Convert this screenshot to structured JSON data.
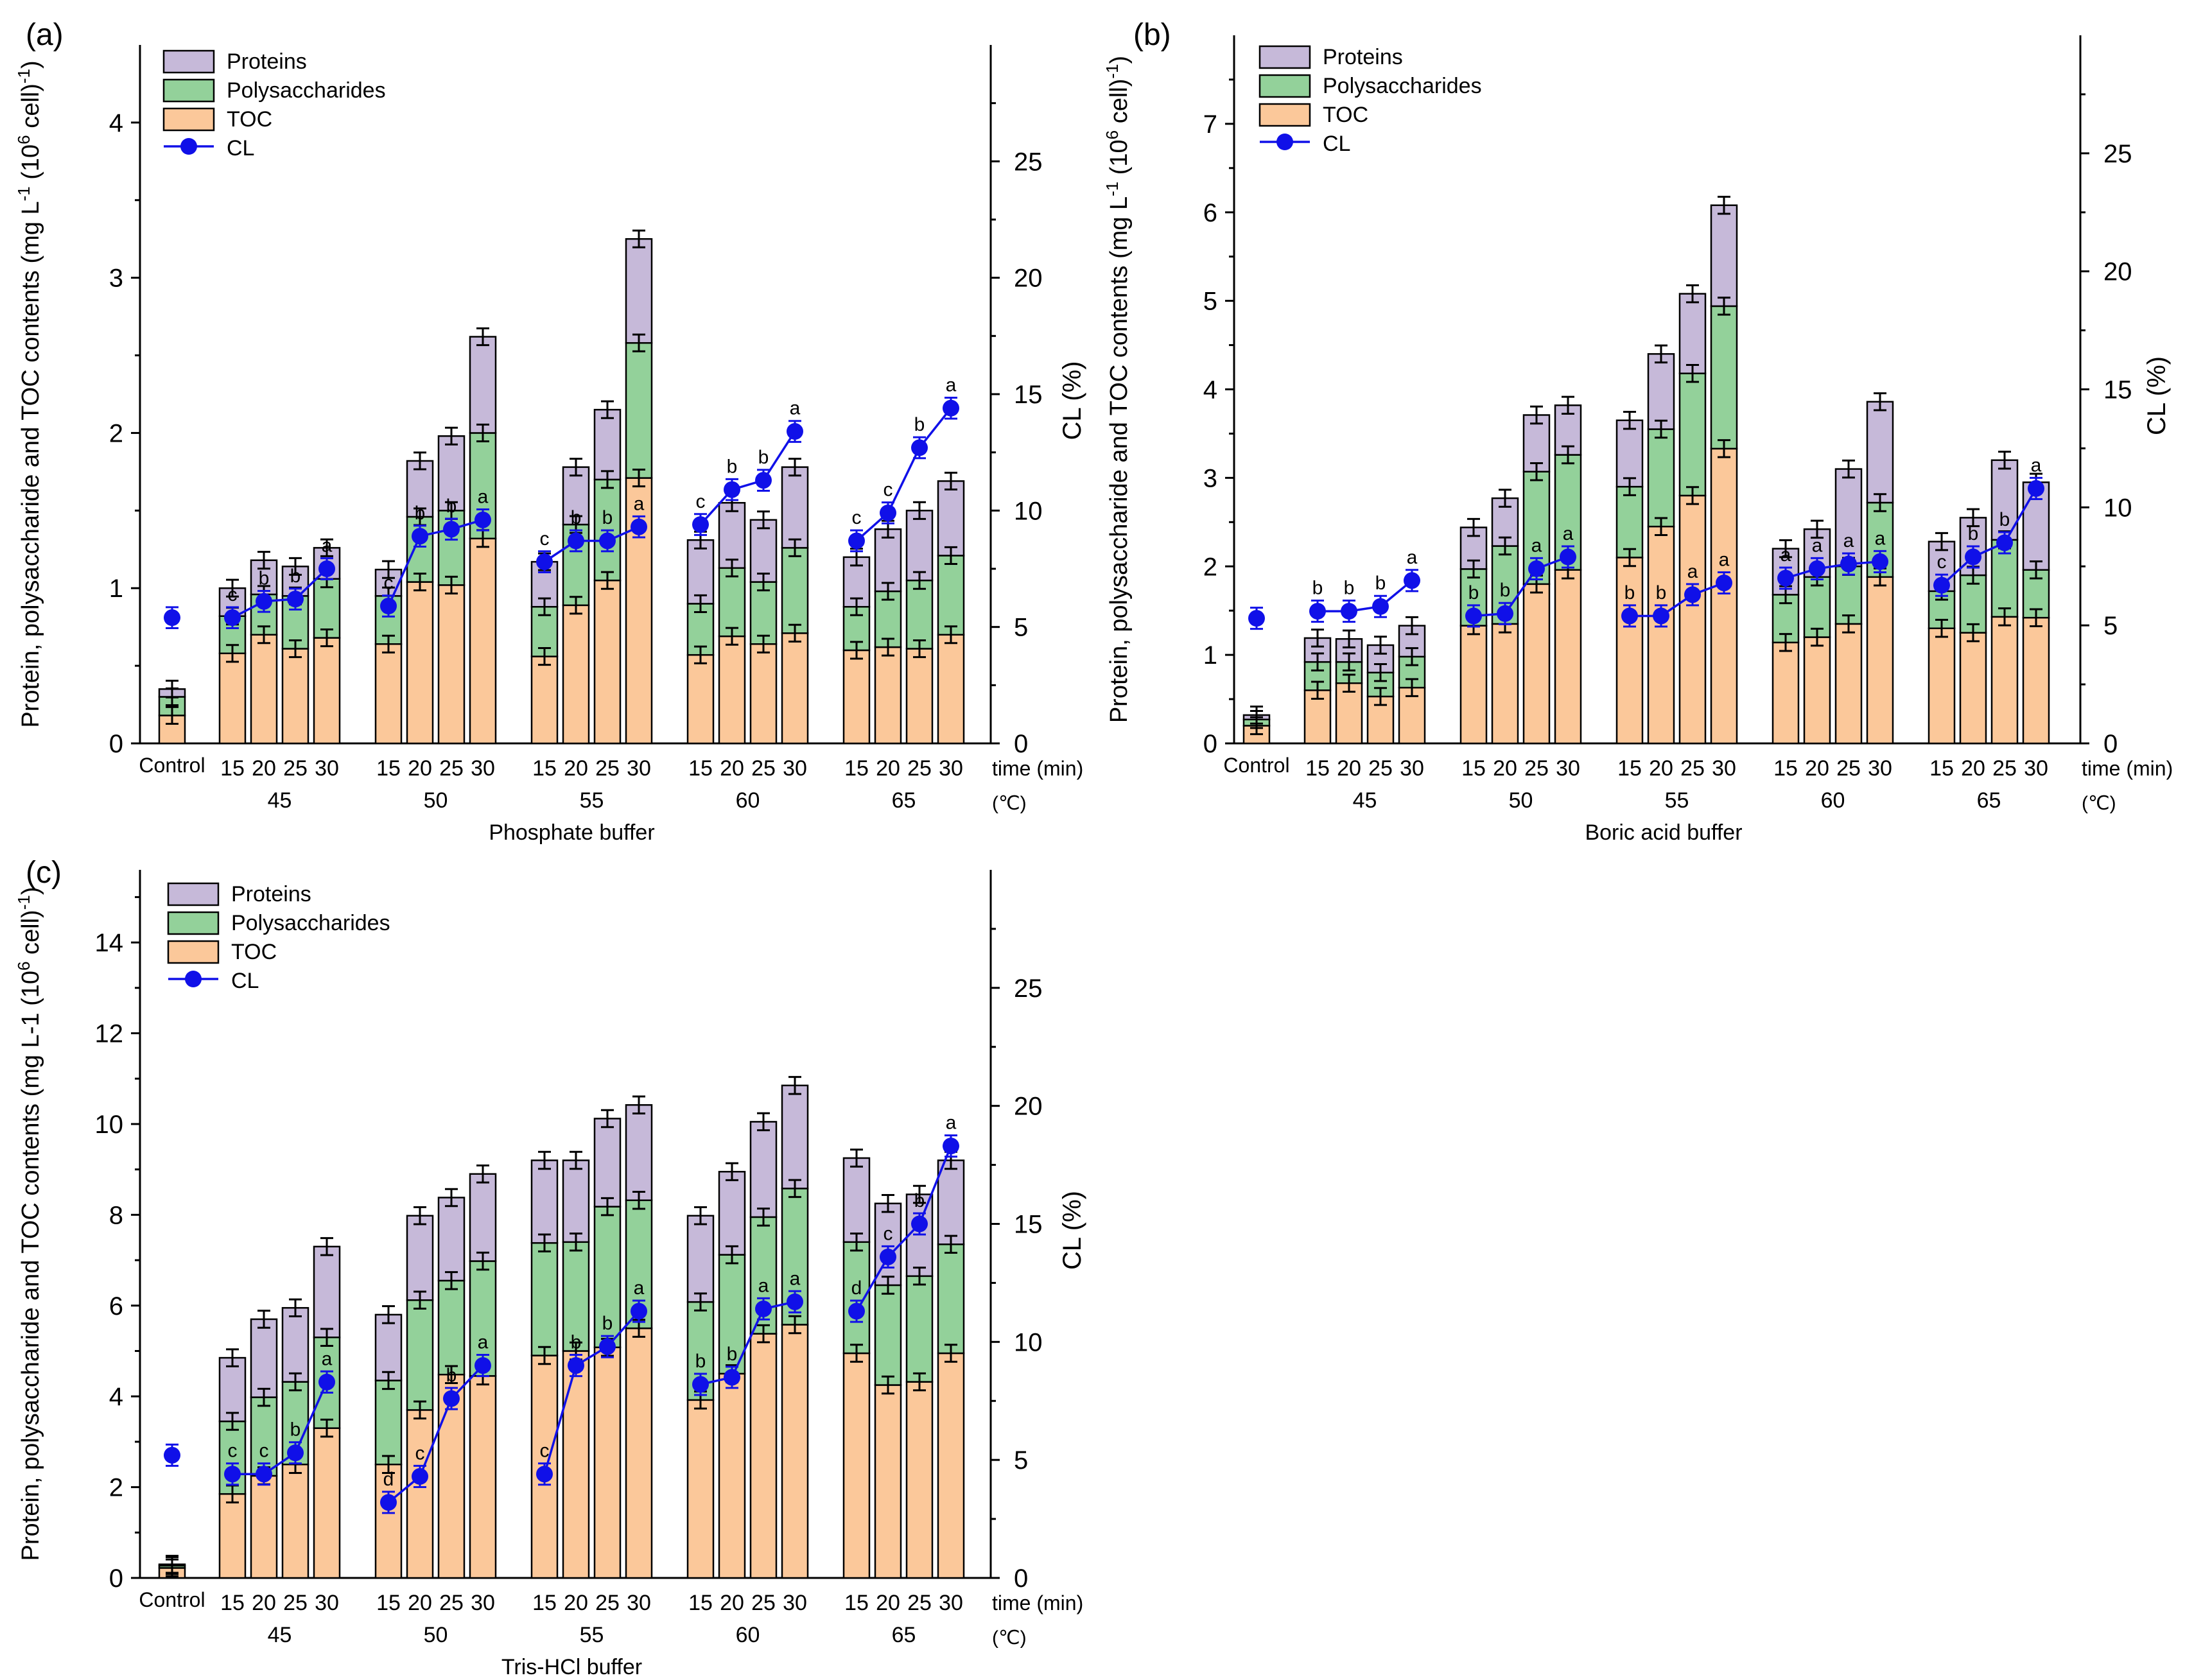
{
  "colors": {
    "toc": "#FBC89A",
    "polysaccharides": "#93D19A",
    "proteins": "#C6B9D9",
    "cl": "#1010E8",
    "stroke": "#000000"
  },
  "temperature_unit": "(℃)",
  "chart_data": [
    {
      "type": "bar",
      "panel_label": "(a)",
      "buffer": "Phosphate buffer",
      "ylabel": "Protein, polysaccharide and TOC contents (mg L-1 (10^6 cell)-1)",
      "ylabel_parts": [
        "Protein, polysaccharide and TOC contents (mg L",
        "-1",
        " (10",
        "6",
        " cell)",
        "-1",
        ")"
      ],
      "y2label": "CL (%)",
      "ylim": [
        0,
        4.5
      ],
      "yticks": [
        0,
        1,
        2,
        3,
        4
      ],
      "y2lim": [
        0,
        30
      ],
      "y2ticks": [
        0,
        5,
        10,
        15,
        20,
        25
      ],
      "xaxis_label": "time (min)",
      "legend": [
        "Proteins",
        "Polysaccharides",
        "TOC",
        "CL"
      ],
      "control": {
        "label": "Control",
        "toc": 0.18,
        "polysaccharides": 0.3,
        "proteins": 0.35,
        "cl": 5.4
      },
      "groups": [
        {
          "temperature": "45",
          "times": [
            "15",
            "20",
            "25",
            "30"
          ],
          "toc": [
            0.58,
            0.7,
            0.61,
            0.68
          ],
          "polysaccharides": [
            0.82,
            0.96,
            0.95,
            1.06
          ],
          "proteins": [
            1.0,
            1.18,
            1.14,
            1.26
          ],
          "cl": [
            5.4,
            6.1,
            6.2,
            7.5
          ],
          "letters": [
            "c",
            "b",
            "b",
            "a"
          ]
        },
        {
          "temperature": "50",
          "times": [
            "15",
            "20",
            "25",
            "30"
          ],
          "toc": [
            0.64,
            1.04,
            1.02,
            1.32
          ],
          "polysaccharides": [
            0.95,
            1.46,
            1.5,
            2.0
          ],
          "proteins": [
            1.12,
            1.82,
            1.98,
            2.62
          ],
          "cl": [
            5.9,
            8.9,
            9.2,
            9.6
          ],
          "letters": [
            "c",
            "b",
            "b",
            "a"
          ]
        },
        {
          "temperature": "55",
          "times": [
            "15",
            "20",
            "25",
            "30"
          ],
          "toc": [
            0.56,
            0.89,
            1.05,
            1.71
          ],
          "polysaccharides": [
            0.88,
            1.41,
            1.7,
            2.58
          ],
          "proteins": [
            1.17,
            1.78,
            2.15,
            3.25
          ],
          "cl": [
            7.8,
            8.7,
            8.7,
            9.3
          ],
          "letters": [
            "c",
            "b",
            "b",
            "a"
          ]
        },
        {
          "temperature": "60",
          "times": [
            "15",
            "20",
            "25",
            "30"
          ],
          "toc": [
            0.57,
            0.69,
            0.64,
            0.71
          ],
          "polysaccharides": [
            0.9,
            1.13,
            1.04,
            1.26
          ],
          "proteins": [
            1.31,
            1.55,
            1.44,
            1.78
          ],
          "cl": [
            9.4,
            10.9,
            11.3,
            13.4
          ],
          "letters": [
            "c",
            "b",
            "b",
            "a"
          ]
        },
        {
          "temperature": "65",
          "times": [
            "15",
            "20",
            "25",
            "30"
          ],
          "toc": [
            0.6,
            0.62,
            0.61,
            0.7
          ],
          "polysaccharides": [
            0.88,
            0.98,
            1.05,
            1.21
          ],
          "proteins": [
            1.2,
            1.38,
            1.5,
            1.69
          ],
          "cl": [
            8.7,
            9.9,
            12.7,
            14.4
          ],
          "letters": [
            "c",
            "c",
            "b",
            "a"
          ]
        }
      ]
    },
    {
      "type": "bar",
      "panel_label": "(b)",
      "buffer": "Boric acid buffer",
      "ylabel": "Protein, polysaccharide and TOC contents (mg L-1 (10^6 cell)-1)",
      "ylabel_parts": [
        "Protein, polysaccharide and TOC contents (mg L",
        "-1",
        " (10",
        "6",
        " cell)",
        "-1",
        ")"
      ],
      "y2label": "CL (%)",
      "ylim": [
        0,
        8
      ],
      "yticks": [
        0,
        1,
        2,
        3,
        4,
        5,
        6,
        7
      ],
      "y2lim": [
        0,
        30
      ],
      "y2ticks": [
        0,
        5,
        10,
        15,
        20,
        25
      ],
      "xaxis_label": "time (min)",
      "legend": [
        "Proteins",
        "Polysaccharides",
        "TOC",
        "CL"
      ],
      "control": {
        "label": "Control",
        "toc": 0.2,
        "polysaccharides": 0.27,
        "proteins": 0.32,
        "cl": 5.3
      },
      "groups": [
        {
          "temperature": "45",
          "times": [
            "15",
            "20",
            "25",
            "30"
          ],
          "toc": [
            0.6,
            0.68,
            0.53,
            0.63
          ],
          "polysaccharides": [
            0.92,
            0.92,
            0.8,
            0.98
          ],
          "proteins": [
            1.19,
            1.18,
            1.11,
            1.33
          ],
          "cl": [
            5.6,
            5.6,
            5.8,
            6.9
          ],
          "letters": [
            "b",
            "b",
            "b",
            "a"
          ]
        },
        {
          "temperature": "50",
          "times": [
            "15",
            "20",
            "25",
            "30"
          ],
          "toc": [
            1.33,
            1.35,
            1.8,
            1.96
          ],
          "polysaccharides": [
            1.97,
            2.23,
            3.07,
            3.26
          ],
          "proteins": [
            2.44,
            2.77,
            3.71,
            3.82
          ],
          "cl": [
            5.4,
            5.5,
            7.4,
            7.9
          ],
          "letters": [
            "b",
            "b",
            "a",
            "a"
          ]
        },
        {
          "temperature": "55",
          "times": [
            "15",
            "20",
            "25",
            "30"
          ],
          "toc": [
            2.1,
            2.45,
            2.8,
            3.33
          ],
          "polysaccharides": [
            2.9,
            3.55,
            4.18,
            4.94
          ],
          "proteins": [
            3.65,
            4.4,
            5.08,
            6.08
          ],
          "cl": [
            5.4,
            5.4,
            6.3,
            6.8
          ],
          "letters": [
            "b",
            "b",
            "a",
            "a"
          ]
        },
        {
          "temperature": "60",
          "times": [
            "15",
            "20",
            "25",
            "30"
          ],
          "toc": [
            1.14,
            1.2,
            1.35,
            1.88
          ],
          "polysaccharides": [
            1.68,
            1.88,
            2.0,
            2.72
          ],
          "proteins": [
            2.2,
            2.42,
            3.1,
            3.86
          ],
          "cl": [
            7.0,
            7.4,
            7.6,
            7.7
          ],
          "letters": [
            "a",
            "a",
            "a",
            "a"
          ]
        },
        {
          "temperature": "65",
          "times": [
            "15",
            "20",
            "25",
            "30"
          ],
          "toc": [
            1.3,
            1.25,
            1.43,
            1.42
          ],
          "polysaccharides": [
            1.72,
            1.9,
            2.3,
            1.96
          ],
          "proteins": [
            2.28,
            2.55,
            3.2,
            2.95
          ],
          "cl": [
            6.7,
            7.9,
            8.5,
            10.8
          ],
          "letters": [
            "c",
            "b",
            "b",
            "a"
          ]
        }
      ]
    },
    {
      "type": "bar",
      "panel_label": "(c)",
      "buffer": "Tris-HCl buffer",
      "ylabel": "Protein, polysaccharide and TOC contents (mg L-1 (10^6 cell)-1)",
      "ylabel_parts": [
        "Protein, polysaccharide and TOC contents (mg L-1 (10",
        "6",
        " cell)",
        "-1",
        ")"
      ],
      "y2label": "CL (%)",
      "ylim": [
        0,
        15.6
      ],
      "yticks": [
        0,
        2,
        4,
        6,
        8,
        10,
        12,
        14
      ],
      "y2lim": [
        0,
        30
      ],
      "y2ticks": [
        0,
        5,
        10,
        15,
        20,
        25
      ],
      "xaxis_label": "time (min)",
      "legend": [
        "Proteins",
        "Polysaccharides",
        "TOC",
        "CL"
      ],
      "control": {
        "label": "Control",
        "toc": 0.22,
        "polysaccharides": 0.27,
        "proteins": 0.3,
        "cl": 5.2
      },
      "groups": [
        {
          "temperature": "45",
          "times": [
            "15",
            "20",
            "25",
            "30"
          ],
          "toc": [
            1.85,
            2.25,
            2.5,
            3.3
          ],
          "polysaccharides": [
            3.45,
            3.98,
            4.32,
            5.3
          ],
          "proteins": [
            4.85,
            5.7,
            5.95,
            7.3
          ],
          "cl": [
            4.4,
            4.4,
            5.3,
            8.3
          ],
          "letters": [
            "c",
            "c",
            "b",
            "a"
          ]
        },
        {
          "temperature": "50",
          "times": [
            "15",
            "20",
            "25",
            "30"
          ],
          "toc": [
            2.5,
            3.7,
            4.48,
            4.45
          ],
          "polysaccharides": [
            4.35,
            6.12,
            6.55,
            6.98
          ],
          "proteins": [
            5.8,
            7.98,
            8.38,
            8.9
          ],
          "cl": [
            3.2,
            4.3,
            7.6,
            9.0
          ],
          "letters": [
            "d",
            "c",
            "b",
            "a"
          ]
        },
        {
          "temperature": "55",
          "times": [
            "15",
            "20",
            "25",
            "30"
          ],
          "toc": [
            4.9,
            5.0,
            5.08,
            5.5
          ],
          "polysaccharides": [
            7.38,
            7.4,
            8.18,
            8.32
          ],
          "proteins": [
            9.2,
            9.2,
            10.12,
            10.42
          ],
          "cl": [
            4.4,
            9.0,
            9.8,
            11.3
          ],
          "letters": [
            "c",
            "b",
            "b",
            "a"
          ]
        },
        {
          "temperature": "60",
          "times": [
            "15",
            "20",
            "25",
            "30"
          ],
          "toc": [
            3.92,
            4.5,
            5.38,
            5.58
          ],
          "polysaccharides": [
            6.08,
            7.12,
            7.95,
            8.58
          ],
          "proteins": [
            7.98,
            8.95,
            10.05,
            10.85
          ],
          "cl": [
            8.2,
            8.5,
            11.4,
            11.7
          ],
          "letters": [
            "b",
            "b",
            "a",
            "a"
          ]
        },
        {
          "temperature": "65",
          "times": [
            "15",
            "20",
            "25",
            "30"
          ],
          "toc": [
            4.95,
            4.25,
            4.32,
            4.95
          ],
          "polysaccharides": [
            7.4,
            6.45,
            6.65,
            7.35
          ],
          "proteins": [
            9.25,
            8.25,
            8.45,
            9.2
          ],
          "cl": [
            11.3,
            13.6,
            15.0,
            18.3
          ],
          "letters": [
            "d",
            "c",
            "b",
            "a"
          ]
        }
      ]
    }
  ]
}
